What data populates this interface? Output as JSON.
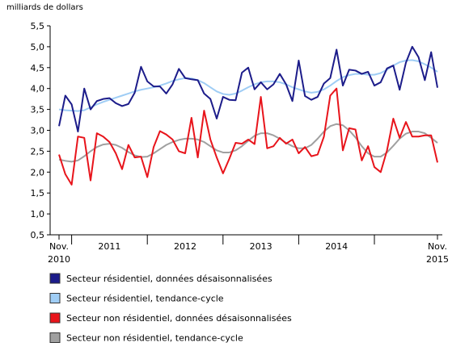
{
  "chart_data": {
    "type": "line",
    "y_label": "milliards de dollars",
    "categories": [
      "Nov. 2010",
      null,
      null,
      null,
      null,
      null,
      null,
      null,
      "2011",
      null,
      null,
      null,
      null,
      null,
      null,
      null,
      null,
      null,
      null,
      null,
      "2012",
      null,
      null,
      null,
      null,
      null,
      null,
      null,
      null,
      null,
      null,
      null,
      "2013",
      null,
      null,
      null,
      null,
      null,
      null,
      null,
      null,
      null,
      null,
      null,
      "2014",
      null,
      null,
      null,
      null,
      null,
      null,
      null,
      null,
      null,
      null,
      null,
      null,
      null,
      null,
      null,
      "Nov. 2015"
    ],
    "ylim": [
      0.5,
      5.5
    ],
    "yticks": [
      {
        "value": 0.5,
        "label": "0,5"
      },
      {
        "value": 1.0,
        "label": "1,0"
      },
      {
        "value": 1.5,
        "label": "1,5"
      },
      {
        "value": 2.0,
        "label": "2,0"
      },
      {
        "value": 2.5,
        "label": "2,5"
      },
      {
        "value": 3.0,
        "label": "3,0"
      },
      {
        "value": 3.5,
        "label": "3,5"
      },
      {
        "value": 4.0,
        "label": "4,0"
      },
      {
        "value": 4.5,
        "label": "4,5"
      },
      {
        "value": 5.0,
        "label": "5,0"
      },
      {
        "value": 5.5,
        "label": "5,5"
      }
    ],
    "grid": false,
    "series": [
      {
        "name": "Secteur résidentiel, données désaisonnalisées",
        "color": "#1c1c8a",
        "values": [
          3.1,
          3.83,
          3.62,
          2.97,
          4.0,
          3.5,
          3.7,
          3.75,
          3.77,
          3.65,
          3.58,
          3.63,
          3.9,
          4.52,
          4.17,
          4.05,
          4.05,
          3.88,
          4.1,
          4.47,
          4.25,
          4.22,
          4.2,
          3.88,
          3.75,
          3.28,
          3.8,
          3.73,
          3.72,
          4.38,
          4.5,
          3.98,
          4.15,
          3.98,
          4.1,
          4.35,
          4.1,
          3.7,
          4.67,
          3.82,
          3.73,
          3.8,
          4.12,
          4.25,
          4.93,
          4.07,
          4.45,
          4.43,
          4.35,
          4.4,
          4.07,
          4.15,
          4.48,
          4.55,
          3.97,
          4.62,
          5.0,
          4.75,
          4.2,
          4.87,
          4.02
        ]
      },
      {
        "name": "Secteur résidentiel, tendance-cycle",
        "color": "#9fcdf5",
        "values": [
          3.5,
          3.48,
          3.47,
          3.46,
          3.48,
          3.55,
          3.62,
          3.68,
          3.73,
          3.78,
          3.83,
          3.88,
          3.93,
          3.97,
          4.0,
          4.03,
          4.07,
          4.12,
          4.18,
          4.22,
          4.25,
          4.24,
          4.2,
          4.13,
          4.03,
          3.93,
          3.87,
          3.85,
          3.88,
          3.95,
          4.03,
          4.1,
          4.15,
          4.17,
          4.17,
          4.15,
          4.1,
          4.03,
          3.98,
          3.93,
          3.9,
          3.92,
          3.98,
          4.07,
          4.18,
          4.27,
          4.32,
          4.35,
          4.35,
          4.33,
          4.33,
          4.37,
          4.45,
          4.55,
          4.63,
          4.67,
          4.68,
          4.65,
          4.58,
          4.5,
          4.4
        ]
      },
      {
        "name": "Secteur non résidentiel, données désaisonnalisées",
        "color": "#e8141b",
        "values": [
          2.42,
          1.95,
          1.7,
          2.85,
          2.82,
          1.8,
          2.93,
          2.85,
          2.72,
          2.45,
          2.07,
          2.65,
          2.35,
          2.37,
          1.88,
          2.6,
          2.98,
          2.9,
          2.78,
          2.5,
          2.45,
          3.3,
          2.35,
          3.47,
          2.78,
          2.35,
          1.97,
          2.32,
          2.7,
          2.68,
          2.78,
          2.67,
          3.8,
          2.57,
          2.62,
          2.82,
          2.68,
          2.78,
          2.45,
          2.6,
          2.38,
          2.42,
          2.85,
          3.83,
          4.0,
          2.52,
          3.05,
          3.02,
          2.28,
          2.62,
          2.12,
          2.0,
          2.52,
          3.28,
          2.82,
          3.2,
          2.85,
          2.85,
          2.88,
          2.88,
          2.23
        ]
      },
      {
        "name": "Secteur non résidentiel, tendance-cycle",
        "color": "#a0a0a0",
        "values": [
          2.3,
          2.27,
          2.25,
          2.28,
          2.38,
          2.5,
          2.6,
          2.66,
          2.68,
          2.65,
          2.58,
          2.48,
          2.4,
          2.36,
          2.37,
          2.45,
          2.55,
          2.65,
          2.72,
          2.77,
          2.8,
          2.8,
          2.78,
          2.72,
          2.62,
          2.52,
          2.47,
          2.47,
          2.52,
          2.62,
          2.75,
          2.87,
          2.93,
          2.93,
          2.88,
          2.8,
          2.7,
          2.62,
          2.57,
          2.57,
          2.65,
          2.8,
          2.97,
          3.1,
          3.15,
          3.12,
          3.0,
          2.83,
          2.62,
          2.45,
          2.37,
          2.37,
          2.47,
          2.63,
          2.8,
          2.92,
          2.97,
          2.97,
          2.93,
          2.82,
          2.7
        ]
      }
    ]
  }
}
